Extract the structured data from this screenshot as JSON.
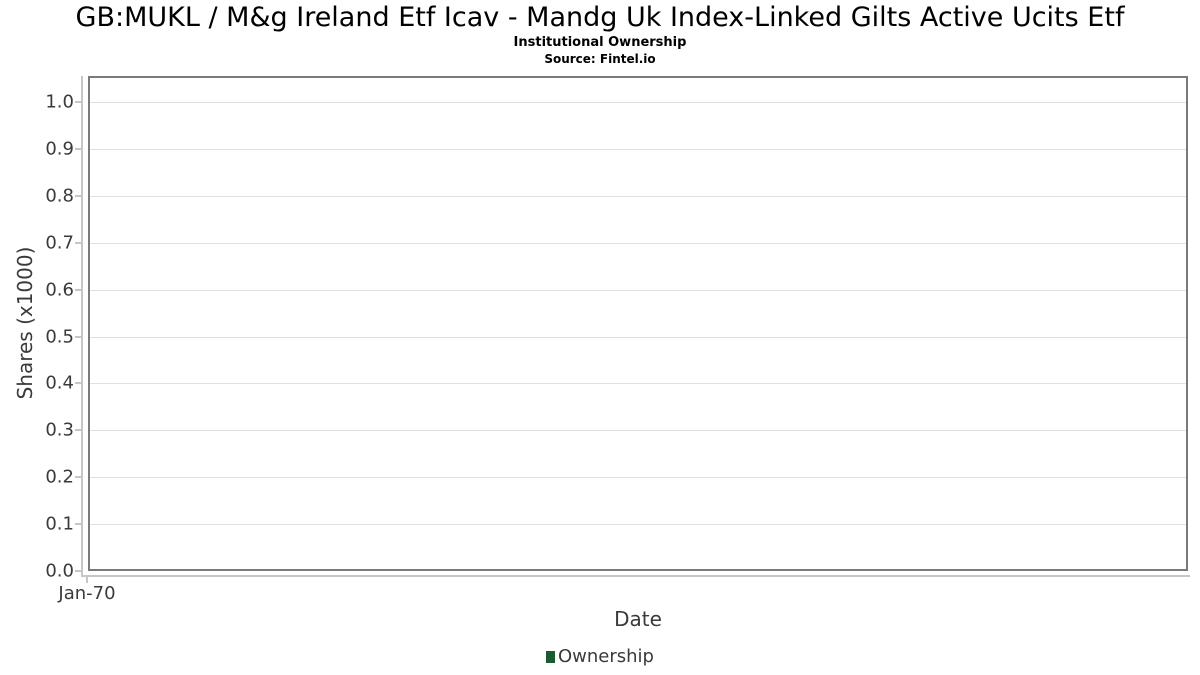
{
  "header": {
    "title": "GB:MUKL / M&g Ireland Etf Icav - Mandg Uk Index-Linked Gilts Active Ucits Etf",
    "subtitle": "Institutional Ownership",
    "source": "Source: Fintel.io"
  },
  "chart_data": {
    "type": "line",
    "title": "GB:MUKL / M&g Ireland Etf Icav - Mandg Uk Index-Linked Gilts Active Ucits Etf",
    "subtitle": "Institutional Ownership",
    "source": "Source: Fintel.io",
    "xlabel": "Date",
    "ylabel": "Shares (x1000)",
    "ylim": [
      0.0,
      1.0
    ],
    "y_tick_step": 0.1,
    "y_ticks": [
      "1.0",
      "0.9",
      "0.8",
      "0.7",
      "0.6",
      "0.5",
      "0.4",
      "0.3",
      "0.2",
      "0.1",
      "0.0"
    ],
    "x_ticks": [
      "Jan-70"
    ],
    "grid": true,
    "legend_position": "bottom",
    "series": [
      {
        "name": "Ownership",
        "color": "#1d5a31",
        "x": [],
        "values": []
      }
    ]
  }
}
